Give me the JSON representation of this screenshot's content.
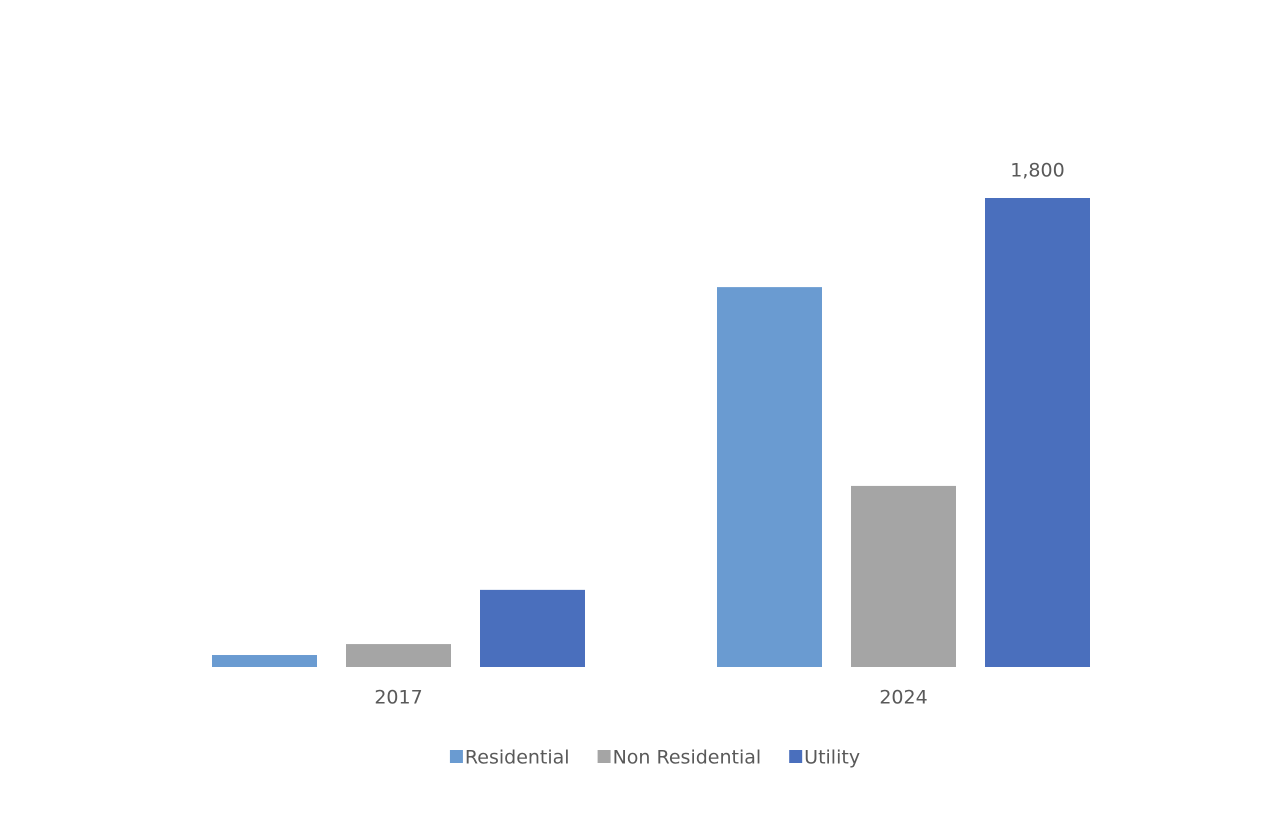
{
  "chart_data": {
    "type": "bar",
    "categories": [
      "2017",
      "2024"
    ],
    "series": [
      {
        "name": "Residential",
        "color": "#6a9bd1",
        "values": [
          46,
          1458
        ]
      },
      {
        "name": "Non Residential",
        "color": "#a5a5a5",
        "values": [
          88,
          695
        ]
      },
      {
        "name": "Utility",
        "color": "#4a6fbd",
        "values": [
          296,
          1800
        ],
        "value_labels": [
          null,
          "1,800"
        ]
      }
    ],
    "legend": "bottom",
    "grid": false
  }
}
